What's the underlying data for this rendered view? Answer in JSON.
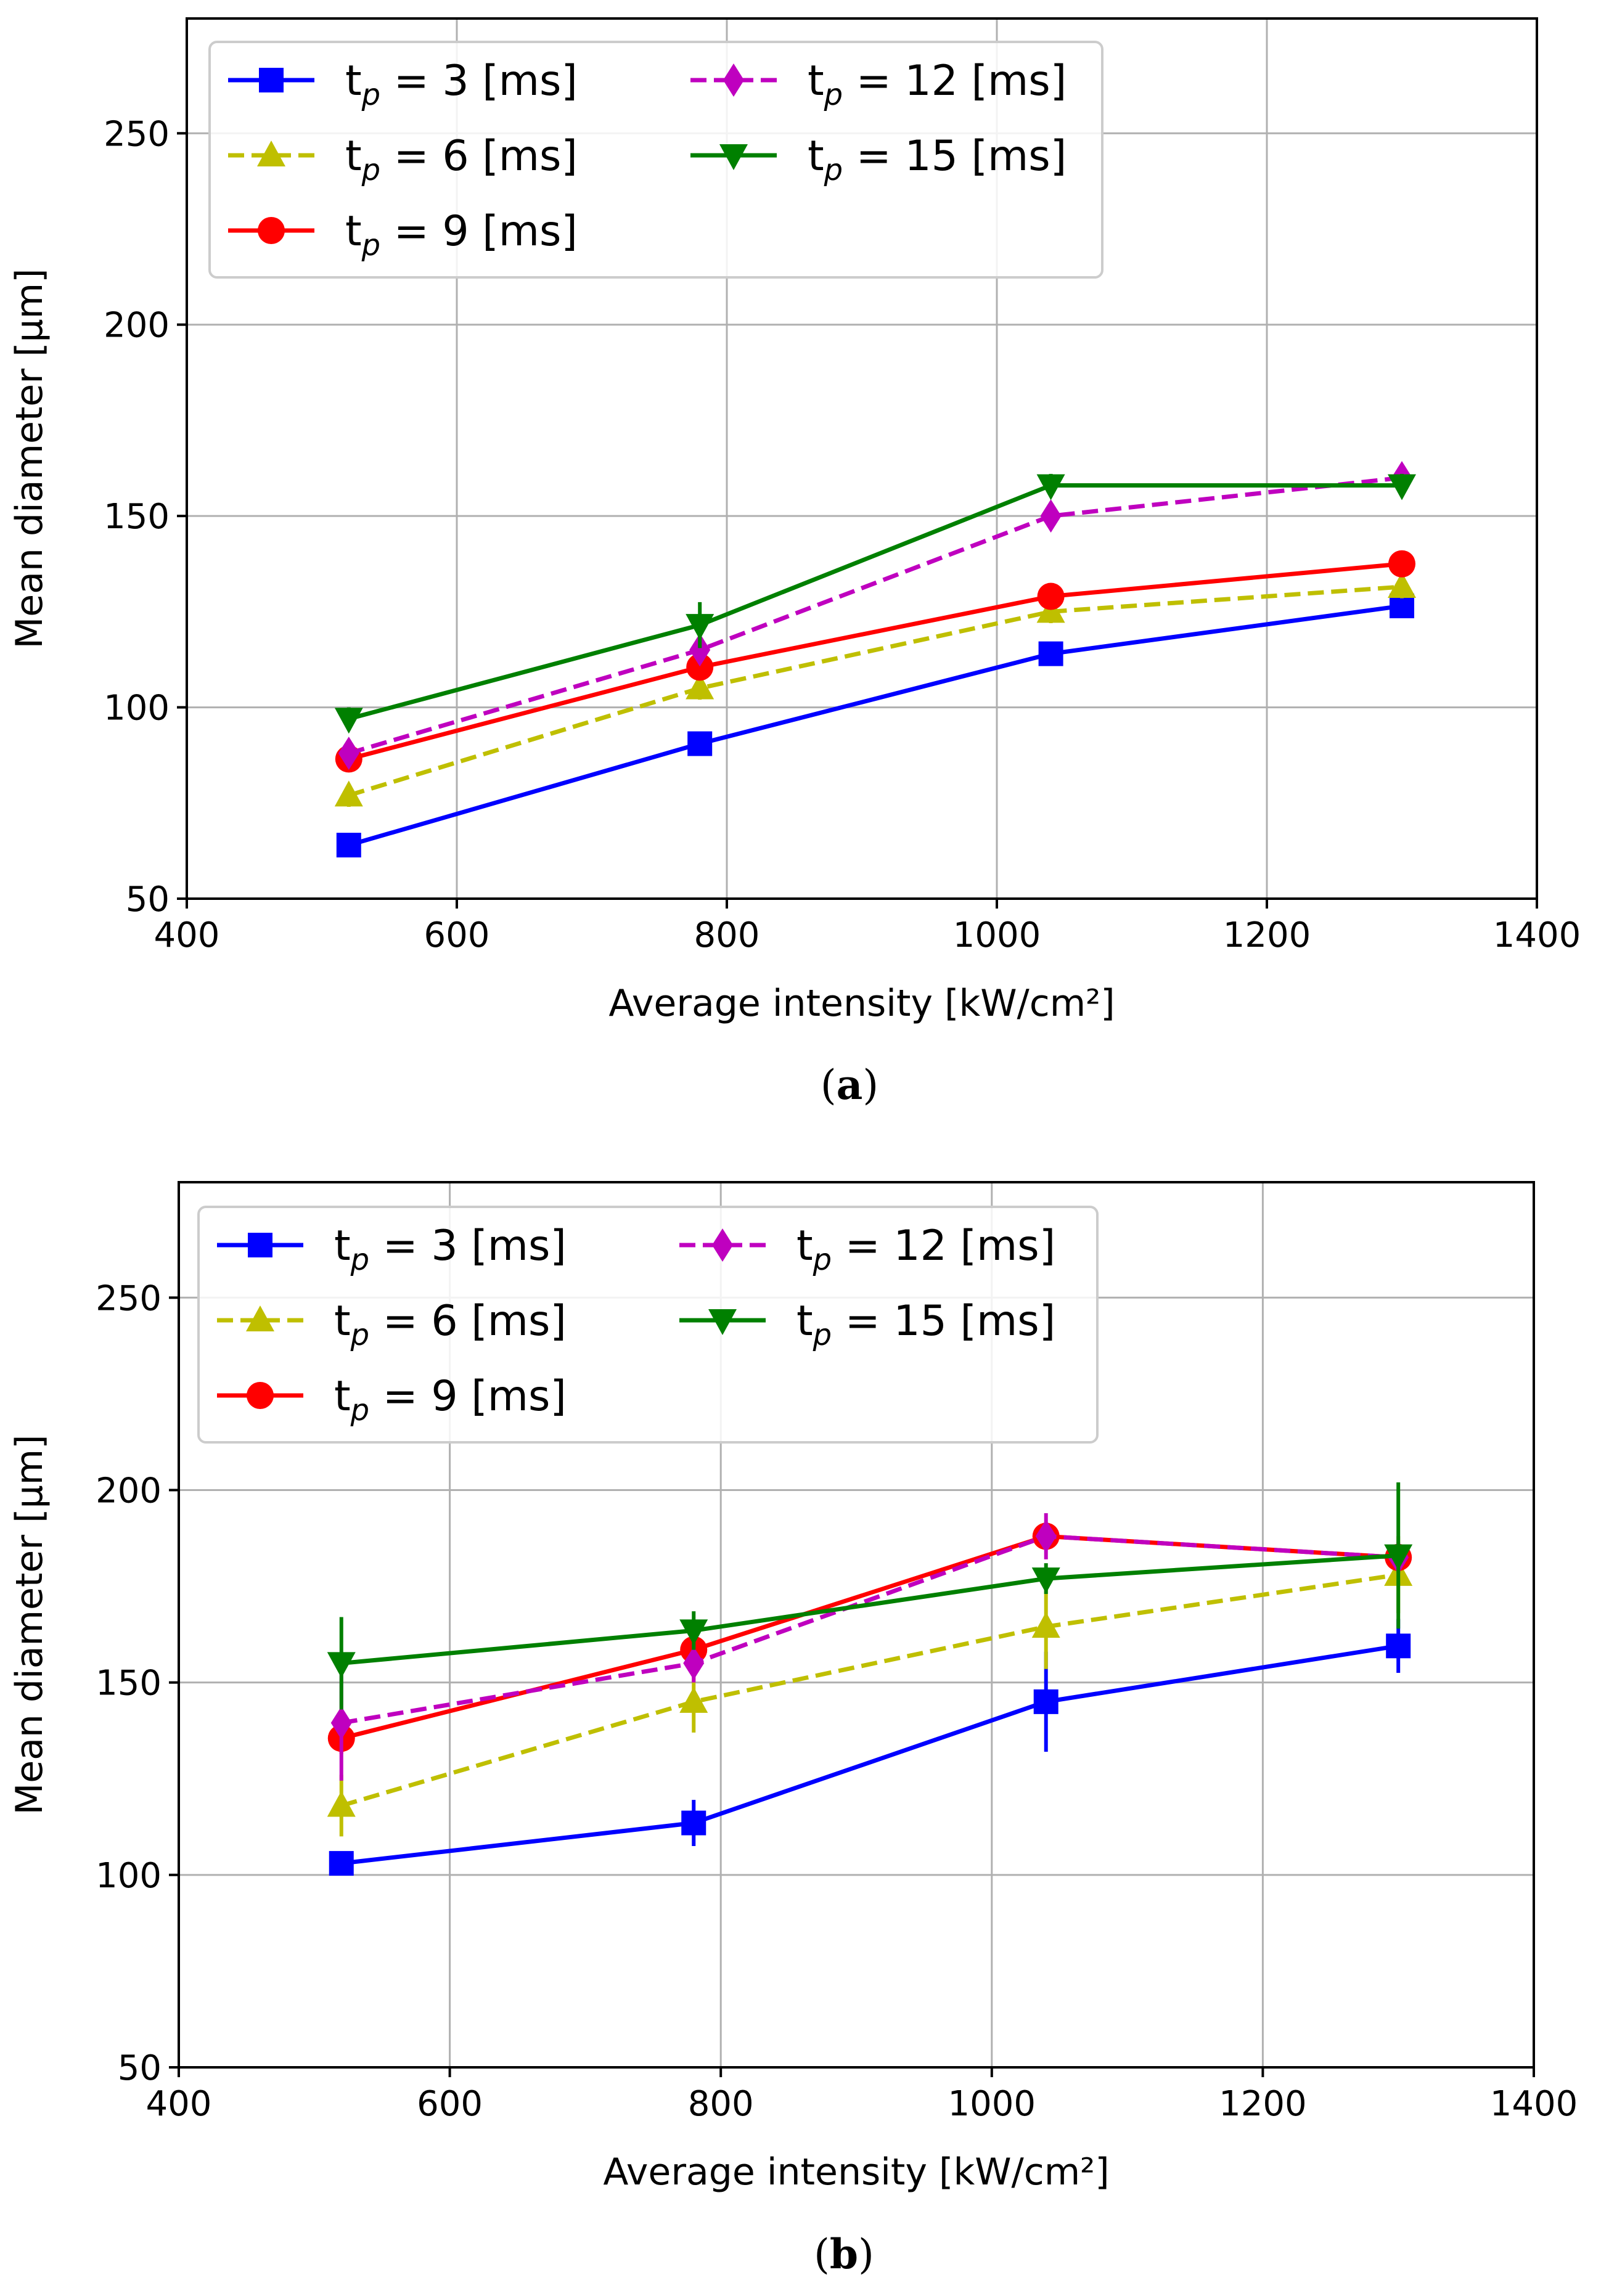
{
  "chart_data": [
    {
      "type": "line",
      "caption": "(a)",
      "xlabel": "Average intensity [kW/cm²]",
      "ylabel": "Mean diameter [μm]",
      "xlim": [
        400,
        1400
      ],
      "ylim": [
        50,
        280
      ],
      "xticks": [
        400,
        600,
        800,
        1000,
        1200,
        1400
      ],
      "yticks": [
        50,
        100,
        150,
        200,
        250
      ],
      "grid": true,
      "legend_position": "top-left",
      "x": [
        520,
        780,
        1040,
        1300
      ],
      "series": [
        {
          "name": "t_p = 3 [ms]",
          "sub": "p",
          "prefix": "t",
          "suffix": " = 3 [ms]",
          "color": "#0000ff",
          "dash": false,
          "marker": "square",
          "values": [
            64,
            90.5,
            114,
            126.5
          ],
          "err": [
            2,
            2,
            2,
            2
          ]
        },
        {
          "name": "t_p = 6 [ms]",
          "sub": "p",
          "prefix": "t",
          "suffix": " = 6 [ms]",
          "color": "#bfbf00",
          "dash": true,
          "marker": "triangle-up",
          "values": [
            77,
            105,
            125,
            131.5
          ],
          "err": [
            3,
            3,
            3,
            3
          ]
        },
        {
          "name": "t_p = 9 [ms]",
          "sub": "p",
          "prefix": "t",
          "suffix": " = 9 [ms]",
          "color": "#ff0000",
          "dash": false,
          "marker": "circle",
          "values": [
            86.5,
            110.5,
            129,
            137.5
          ],
          "err": [
            3,
            3,
            2,
            2
          ]
        },
        {
          "name": "t_p = 12 [ms]",
          "sub": "p",
          "prefix": "t",
          "suffix": " = 12 [ms]",
          "color": "#bf00bf",
          "dash": true,
          "marker": "diamond",
          "values": [
            88,
            115,
            150,
            160
          ],
          "err": [
            3,
            3,
            3,
            3
          ]
        },
        {
          "name": "t_p = 15 [ms]",
          "sub": "p",
          "prefix": "t",
          "suffix": " = 15 [ms]",
          "color": "#008000",
          "dash": false,
          "marker": "triangle-down",
          "values": [
            97,
            121.5,
            158,
            158
          ],
          "err": [
            3,
            6,
            3,
            3
          ]
        }
      ]
    },
    {
      "type": "line",
      "caption": "(b)",
      "xlabel": "Average intensity [kW/cm²]",
      "ylabel": "Mean diameter [μm]",
      "xlim": [
        400,
        1400
      ],
      "ylim": [
        50,
        280
      ],
      "xticks": [
        400,
        600,
        800,
        1000,
        1200,
        1400
      ],
      "yticks": [
        50,
        100,
        150,
        200,
        250
      ],
      "grid": true,
      "legend_position": "top-left",
      "x": [
        520,
        780,
        1040,
        1300
      ],
      "series": [
        {
          "name": "t_p = 3 [ms]",
          "sub": "p",
          "prefix": "t",
          "suffix": " = 3 [ms]",
          "color": "#0000ff",
          "dash": false,
          "marker": "square",
          "values": [
            103,
            113.5,
            145,
            159.5
          ],
          "err": [
            2,
            6,
            13,
            7
          ]
        },
        {
          "name": "t_p = 6 [ms]",
          "sub": "p",
          "prefix": "t",
          "suffix": " = 6 [ms]",
          "color": "#bfbf00",
          "dash": true,
          "marker": "triangle-up",
          "values": [
            118,
            145,
            164.5,
            178
          ],
          "err": [
            8,
            8,
            11,
            10
          ]
        },
        {
          "name": "t_p = 9 [ms]",
          "sub": "p",
          "prefix": "t",
          "suffix": " = 9 [ms]",
          "color": "#ff0000",
          "dash": false,
          "marker": "circle",
          "values": [
            135.5,
            158.5,
            188,
            182.5
          ],
          "err": [
            4,
            4,
            3,
            3
          ]
        },
        {
          "name": "t_p = 12 [ms]",
          "sub": "p",
          "prefix": "t",
          "suffix": " = 12 [ms]",
          "color": "#bf00bf",
          "dash": true,
          "marker": "diamond",
          "values": [
            139.5,
            155,
            188,
            182.5
          ],
          "err": [
            15,
            5,
            6,
            4
          ]
        },
        {
          "name": "t_p = 15 [ms]",
          "sub": "p",
          "prefix": "t",
          "suffix": " = 15 [ms]",
          "color": "#008000",
          "dash": false,
          "marker": "triangle-down",
          "values": [
            155,
            163.5,
            177,
            183
          ],
          "err": [
            12,
            5,
            4,
            19
          ]
        }
      ]
    }
  ]
}
